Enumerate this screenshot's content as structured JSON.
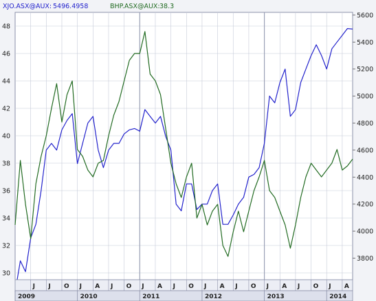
{
  "legend": {
    "series1_name": "XJO.ASX@AUX:",
    "series1_value": "5496.4958",
    "series2_name": "BHP.ASX@AUX:",
    "series2_value": "38.3"
  },
  "colors": {
    "xjo": "#2222cc",
    "bhp": "#226b22",
    "background": "#f2f3f7",
    "plot_bg": "#ffffff",
    "grid": "#c6cad8"
  },
  "chart_data": {
    "type": "line",
    "title": "",
    "x_time_range": [
      "2009-01",
      "2014-06"
    ],
    "left_axis": {
      "series": "BHP.ASX@AUX",
      "ylim": [
        29.5,
        49
      ],
      "ticks": [
        30,
        32,
        34,
        36,
        38,
        40,
        42,
        44,
        46,
        48
      ]
    },
    "right_axis": {
      "series": "XJO.ASX@AUX",
      "ylim": [
        3640,
        5620
      ],
      "ticks": [
        3800,
        4000,
        4200,
        4400,
        4600,
        4800,
        5000,
        5200,
        5400,
        5600
      ]
    },
    "x_month_labels": [
      "J",
      "J",
      "O",
      "J",
      "A",
      "J",
      "O",
      "J",
      "A",
      "J",
      "O",
      "J",
      "A",
      "J",
      "O",
      "J",
      "A",
      "J",
      "O",
      "J",
      "A"
    ],
    "x_year_labels": [
      "2009",
      "2010",
      "2011",
      "2012",
      "2013",
      "2014"
    ],
    "year_divider_dates": [
      "2011-01",
      "2013-01"
    ],
    "grid": true,
    "series": [
      {
        "name": "XJO.ASX@AUX",
        "axis": "right",
        "x": [
          "2009-01",
          "2009-02",
          "2009-03",
          "2009-04",
          "2009-05",
          "2009-06",
          "2009-07",
          "2009-08",
          "2009-09",
          "2009-10",
          "2009-11",
          "2009-12",
          "2010-01",
          "2010-02",
          "2010-03",
          "2010-04",
          "2010-05",
          "2010-06",
          "2010-07",
          "2010-08",
          "2010-09",
          "2010-10",
          "2010-11",
          "2010-12",
          "2011-01",
          "2011-02",
          "2011-03",
          "2011-04",
          "2011-05",
          "2011-06",
          "2011-07",
          "2011-08",
          "2011-09",
          "2011-10",
          "2011-11",
          "2011-12",
          "2012-01",
          "2012-02",
          "2012-03",
          "2012-04",
          "2012-05",
          "2012-06",
          "2012-07",
          "2012-08",
          "2012-09",
          "2012-10",
          "2012-11",
          "2012-12",
          "2013-01",
          "2013-02",
          "2013-03",
          "2013-04",
          "2013-05",
          "2013-06",
          "2013-07",
          "2013-08",
          "2013-09",
          "2013-10",
          "2013-11",
          "2013-12",
          "2014-01",
          "2014-02",
          "2014-03",
          "2014-04",
          "2014-05",
          "2014-06"
        ],
        "values": [
          3550,
          3780,
          3700,
          3950,
          4050,
          4300,
          4600,
          4650,
          4600,
          4750,
          4820,
          4870,
          4500,
          4650,
          4800,
          4850,
          4600,
          4470,
          4600,
          4650,
          4650,
          4720,
          4750,
          4760,
          4740,
          4900,
          4850,
          4800,
          4850,
          4700,
          4600,
          4200,
          4150,
          4350,
          4350,
          4160,
          4200,
          4200,
          4300,
          4350,
          4050,
          4050,
          4120,
          4200,
          4250,
          4400,
          4420,
          4470,
          4650,
          5000,
          4950,
          5100,
          5200,
          4850,
          4900,
          5100,
          5200,
          5300,
          5380,
          5300,
          5200,
          5350,
          5400,
          5450,
          5500,
          5496
        ]
      },
      {
        "name": "BHP.ASX@AUX",
        "axis": "left",
        "x": [
          "2009-01",
          "2009-02",
          "2009-03",
          "2009-04",
          "2009-05",
          "2009-06",
          "2009-07",
          "2009-08",
          "2009-09",
          "2009-10",
          "2009-11",
          "2009-12",
          "2010-01",
          "2010-02",
          "2010-03",
          "2010-04",
          "2010-05",
          "2010-06",
          "2010-07",
          "2010-08",
          "2010-09",
          "2010-10",
          "2010-11",
          "2010-12",
          "2011-01",
          "2011-02",
          "2011-03",
          "2011-04",
          "2011-05",
          "2011-06",
          "2011-07",
          "2011-08",
          "2011-09",
          "2011-10",
          "2011-11",
          "2011-12",
          "2012-01",
          "2012-02",
          "2012-03",
          "2012-04",
          "2012-05",
          "2012-06",
          "2012-07",
          "2012-08",
          "2012-09",
          "2012-10",
          "2012-11",
          "2012-12",
          "2013-01",
          "2013-02",
          "2013-03",
          "2013-04",
          "2013-05",
          "2013-06",
          "2013-07",
          "2013-08",
          "2013-09",
          "2013-10",
          "2013-11",
          "2013-12",
          "2014-01",
          "2014-02",
          "2014-03",
          "2014-04",
          "2014-05",
          "2014-06"
        ],
        "values": [
          33.5,
          38.2,
          35.0,
          32.5,
          36.5,
          38.5,
          40.0,
          42.0,
          43.8,
          41.0,
          43.0,
          44.0,
          39.0,
          38.5,
          37.5,
          37.0,
          38.0,
          38.2,
          40.0,
          41.5,
          42.5,
          44.0,
          45.5,
          46.0,
          46.0,
          47.6,
          44.5,
          44.0,
          43.0,
          40.5,
          38.0,
          36.5,
          35.5,
          37.0,
          38.0,
          34.0,
          35.0,
          33.5,
          34.5,
          35.0,
          32.0,
          31.2,
          33.0,
          34.5,
          33.0,
          34.5,
          36.0,
          37.0,
          38.2,
          36.0,
          35.5,
          34.5,
          33.5,
          31.8,
          33.5,
          35.5,
          37.0,
          38.0,
          37.5,
          37.0,
          37.5,
          38.0,
          39.0,
          37.5,
          37.8,
          38.3
        ]
      }
    ]
  }
}
